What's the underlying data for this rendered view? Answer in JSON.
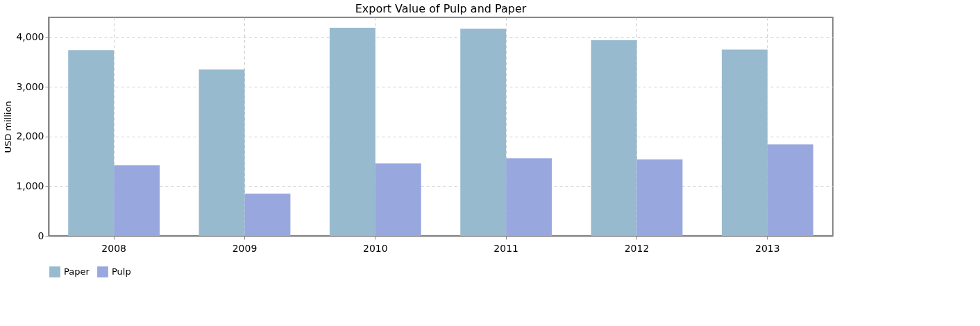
{
  "chart_data": {
    "type": "bar",
    "title": "Export Value of Pulp and Paper",
    "ylabel": "USD million",
    "categories": [
      "2008",
      "2009",
      "2010",
      "2011",
      "2012",
      "2013"
    ],
    "series": [
      {
        "name": "Paper",
        "color": "#97bacf",
        "values": [
          3740,
          3350,
          4190,
          4170,
          3940,
          3750
        ]
      },
      {
        "name": "Pulp",
        "color": "#98a8df",
        "values": [
          1420,
          850,
          1460,
          1560,
          1540,
          1840
        ]
      }
    ],
    "ylim": [
      0,
      4400
    ],
    "yticks": [
      {
        "value": 0,
        "label": "0"
      },
      {
        "value": 1000,
        "label": "1,000"
      },
      {
        "value": 2000,
        "label": "2,000"
      },
      {
        "value": 3000,
        "label": "3,000"
      },
      {
        "value": 4000,
        "label": "4,000"
      }
    ],
    "grid": true,
    "legend": "bottom"
  }
}
